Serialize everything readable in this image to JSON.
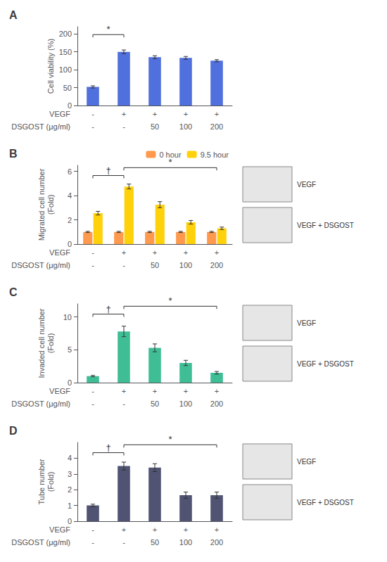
{
  "chart_data": [
    {
      "type": "bar",
      "title": "A",
      "categories": [
        "-",
        "+",
        "+",
        "+",
        "+"
      ],
      "categories2": [
        "-",
        "-",
        "50",
        "100",
        "200"
      ],
      "xlabel": "VEGF",
      "xlabel2": "DSGOST (μg/ml)",
      "ylabel": "Cell viability (%)",
      "values": [
        52,
        150,
        135,
        133,
        125
      ],
      "errors": [
        3,
        5,
        4,
        4,
        3
      ],
      "ylim": [
        0,
        220
      ],
      "yticks": [
        0,
        50,
        100,
        150,
        200
      ],
      "grid": false,
      "annotations": [
        {
          "text": "*",
          "between": [
            0,
            1
          ]
        }
      ]
    },
    {
      "type": "bar",
      "title": "B",
      "categories": [
        "-",
        "+",
        "+",
        "+",
        "+"
      ],
      "categories2": [
        "-",
        "-",
        "50",
        "100",
        "200"
      ],
      "xlabel": "VEGF",
      "xlabel2": "DSGOST (μg/ml)",
      "ylabel": "Migrated cell number\n(Fold)",
      "series": [
        {
          "name": "0 hour",
          "values": [
            1.0,
            1.0,
            1.0,
            1.0,
            1.0
          ],
          "errors": [
            0.05,
            0.05,
            0.05,
            0.05,
            0.05
          ]
        },
        {
          "name": "9.5 hour",
          "values": [
            2.55,
            4.75,
            3.25,
            1.8,
            1.3
          ],
          "errors": [
            0.15,
            0.2,
            0.25,
            0.15,
            0.1
          ]
        }
      ],
      "ylim": [
        0,
        6.5
      ],
      "yticks": [
        0,
        2,
        4,
        6
      ],
      "grid": false,
      "legend": "upper right",
      "annotations": [
        {
          "text": "†",
          "between": [
            0,
            1
          ]
        },
        {
          "text": "*",
          "between": [
            1,
            4
          ]
        },
        {
          "text": "VEGF"
        },
        {
          "text": "VEGF + DSGOST"
        }
      ]
    },
    {
      "type": "bar",
      "title": "C",
      "categories": [
        "-",
        "+",
        "+",
        "+",
        "+"
      ],
      "categories2": [
        "-",
        "-",
        "50",
        "100",
        "200"
      ],
      "xlabel": "VEGF",
      "xlabel2": "DSGOST (μg/ml)",
      "ylabel": "Invaded cell number\n(Fold)",
      "values": [
        1.0,
        7.8,
        5.3,
        3.0,
        1.5
      ],
      "errors": [
        0.1,
        0.8,
        0.6,
        0.4,
        0.2
      ],
      "ylim": [
        0,
        12
      ],
      "yticks": [
        0,
        5,
        10
      ],
      "grid": false,
      "annotations": [
        {
          "text": "†",
          "between": [
            0,
            1
          ]
        },
        {
          "text": "*",
          "between": [
            1,
            4
          ]
        },
        {
          "text": "VEGF"
        },
        {
          "text": "VEGF + DSGOST"
        }
      ]
    },
    {
      "type": "bar",
      "title": "D",
      "categories": [
        "-",
        "+",
        "+",
        "+",
        "+"
      ],
      "categories2": [
        "-",
        "-",
        "50",
        "100",
        "200"
      ],
      "xlabel": "VEGF",
      "xlabel2": "DSGOST (μg/ml)",
      "ylabel": "Tube number\n(Fold)",
      "values": [
        1.0,
        3.5,
        3.4,
        1.65,
        1.65
      ],
      "errors": [
        0.08,
        0.25,
        0.25,
        0.2,
        0.2
      ],
      "ylim": [
        0,
        5
      ],
      "yticks": [
        0,
        1,
        2,
        3,
        4
      ],
      "grid": false,
      "annotations": [
        {
          "text": "†",
          "between": [
            0,
            1
          ]
        },
        {
          "text": "*",
          "between": [
            1,
            4
          ]
        },
        {
          "text": "VEGF"
        },
        {
          "text": "VEGF + DSGOST"
        }
      ]
    }
  ]
}
